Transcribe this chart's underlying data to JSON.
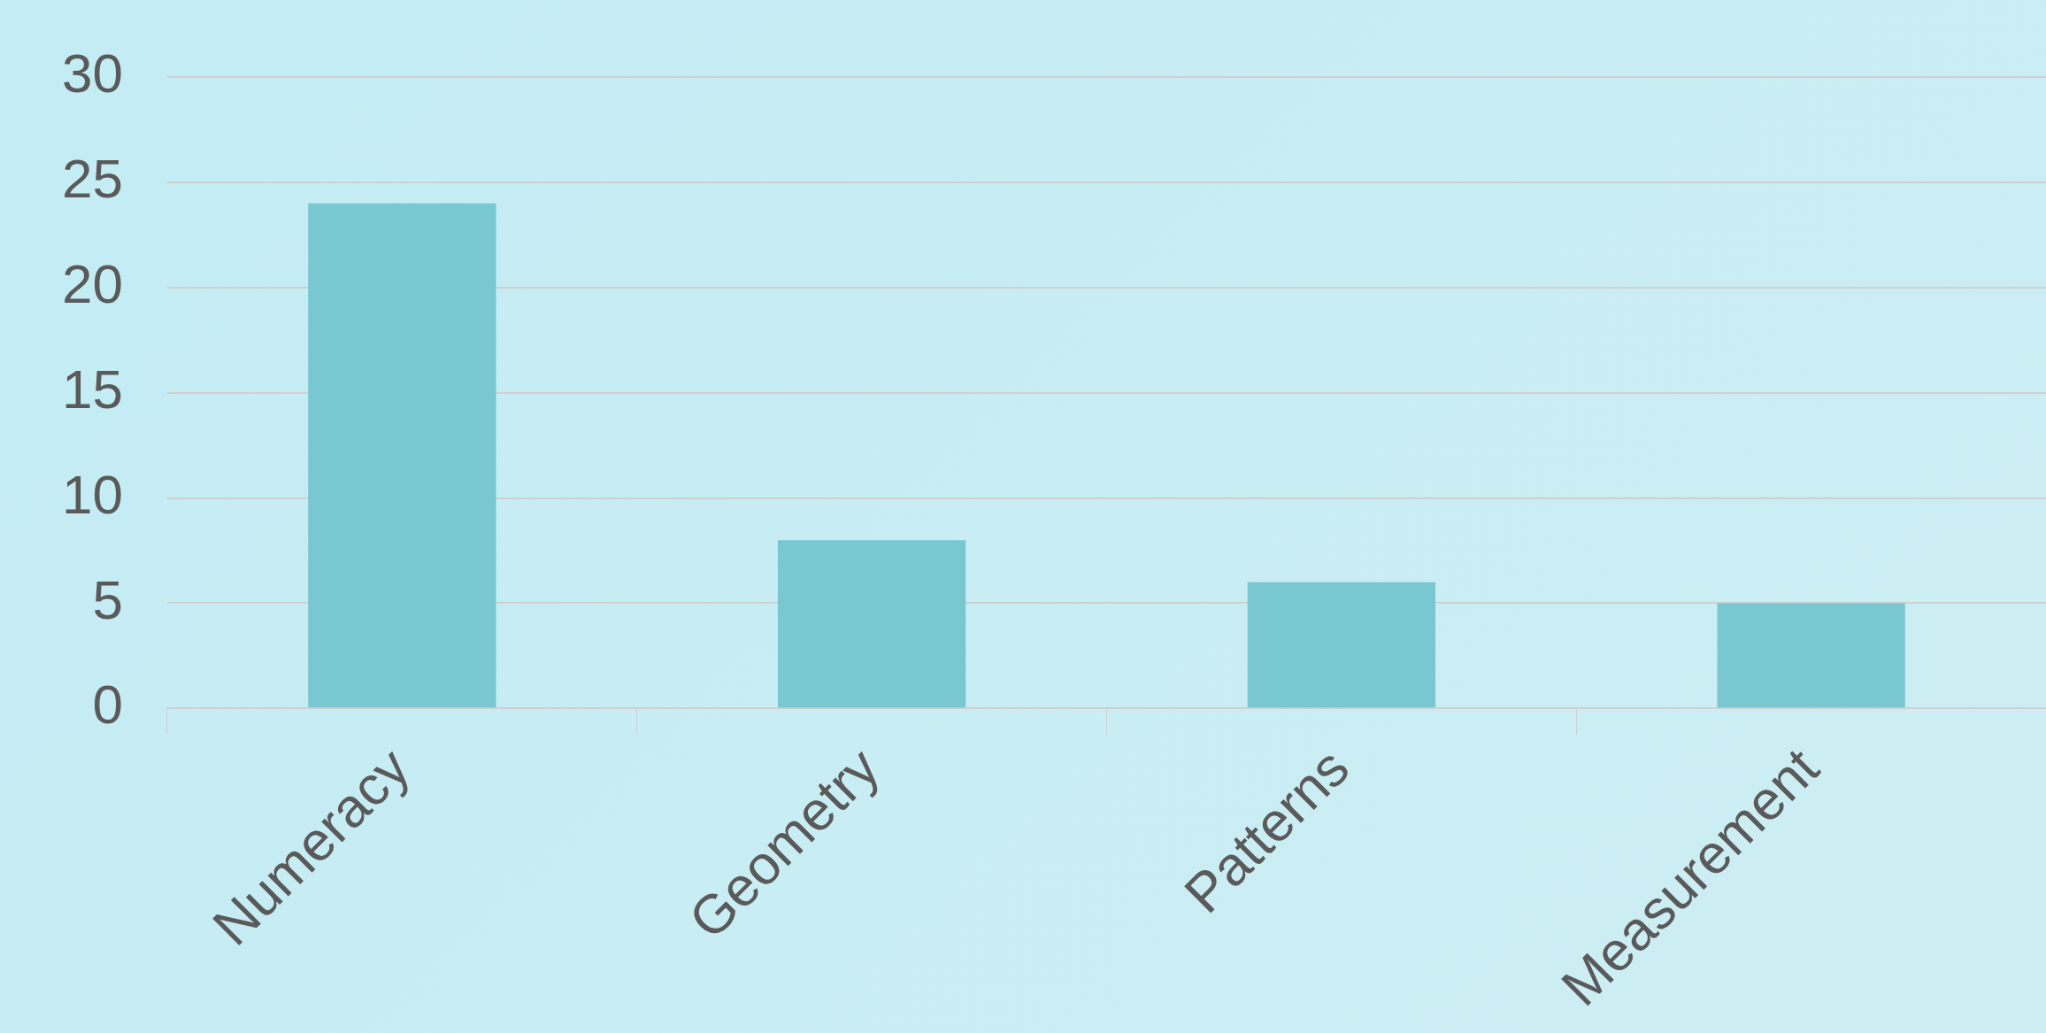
{
  "chart_data": {
    "type": "bar",
    "categories": [
      "Numeracy",
      "Geometry",
      "Patterns",
      "Measurement"
    ],
    "values": [
      24,
      8,
      6,
      5
    ],
    "color": "#79c7d1",
    "ylim": [
      0,
      30
    ],
    "yticks": [
      0,
      5,
      10,
      15,
      20,
      25,
      30
    ],
    "grid": "y"
  }
}
